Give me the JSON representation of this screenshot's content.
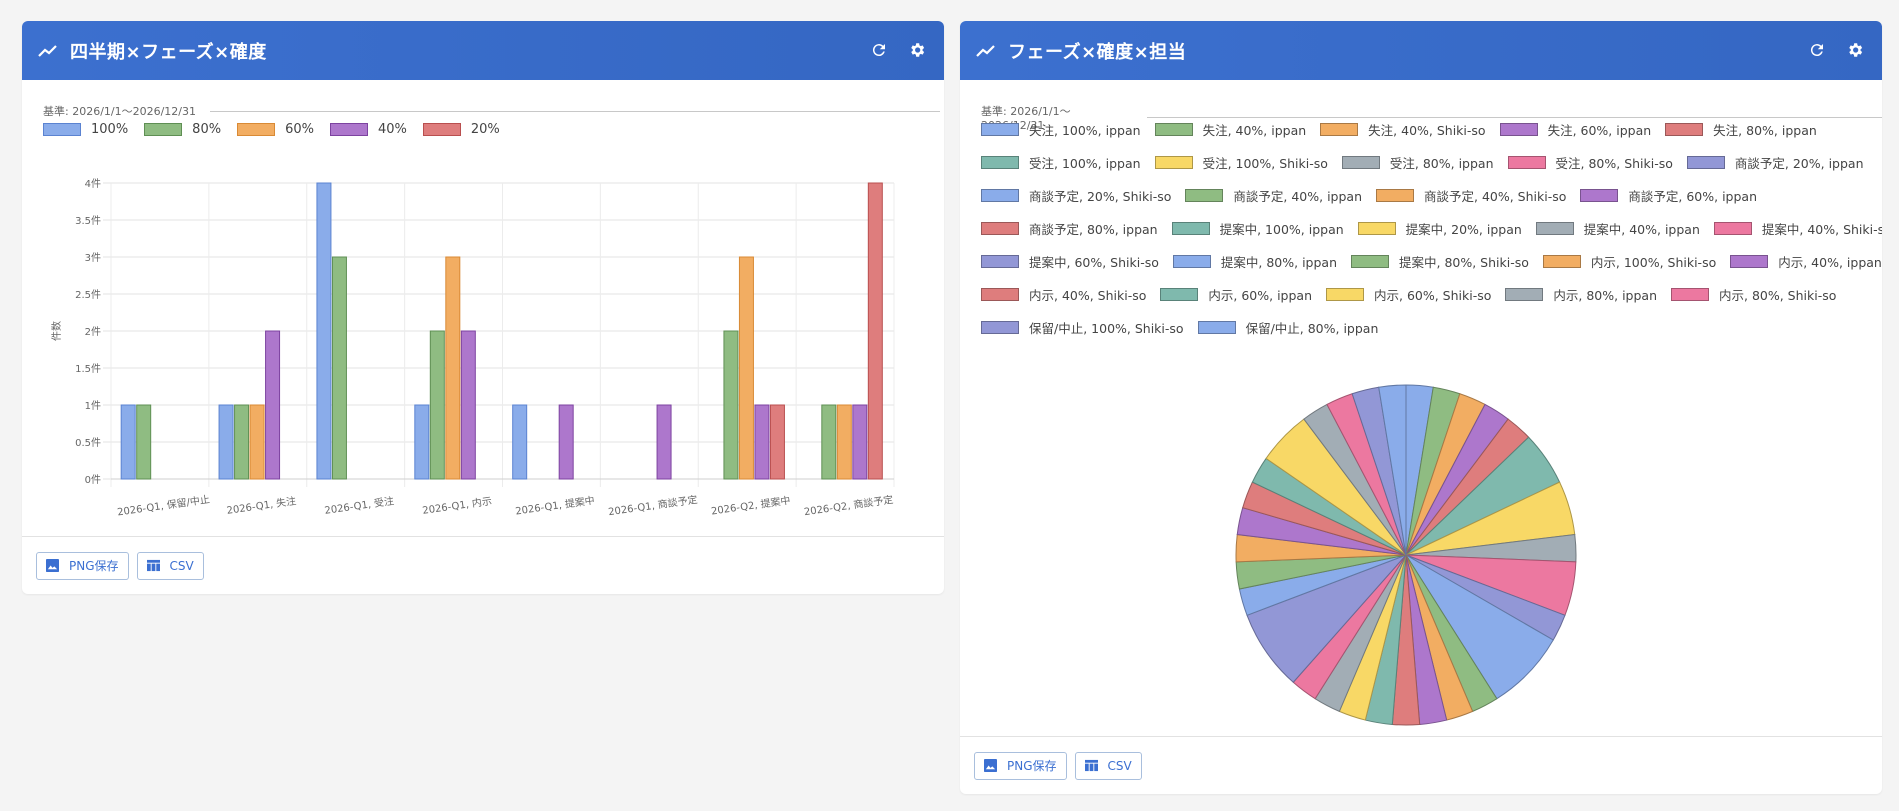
{
  "colors": {
    "header_bg": "#3a6dcc",
    "background": "#f4f4f4",
    "button_text": "#3b6fd1"
  },
  "left_panel": {
    "title": "四半期×フェーズ×確度",
    "period": "基準: 2026/1/1〜2026/12/31",
    "icons": [
      "trend-icon",
      "refresh-icon",
      "gear-icon"
    ],
    "buttons": {
      "png": "PNG保存",
      "csv": "CSV"
    }
  },
  "right_panel": {
    "title": "フェーズ×確度×担当",
    "period": "基準: 2026/1/1〜2026/12/31",
    "icons": [
      "trend-icon",
      "refresh-icon",
      "gear-icon"
    ],
    "buttons": {
      "png": "PNG保存",
      "csv": "CSV"
    }
  },
  "chart_data": [
    {
      "type": "bar",
      "title": "四半期×フェーズ×確度",
      "xlabel": "",
      "ylabel": "件数",
      "ylim": [
        0,
        4
      ],
      "yticks": [
        "0件",
        "0.5件",
        "1件",
        "1.5件",
        "2件",
        "2.5件",
        "3件",
        "3.5件",
        "4件"
      ],
      "grid": true,
      "legend_position": "top",
      "categories": [
        "2026-Q1, 保留/中止",
        "2026-Q1, 失注",
        "2026-Q1, 受注",
        "2026-Q1, 内示",
        "2026-Q1, 提案中",
        "2026-Q1, 商談予定",
        "2026-Q2, 提案中",
        "2026-Q2, 商談予定"
      ],
      "series": [
        {
          "name": "100%",
          "color": "#8aacea",
          "border": "#5b83d1",
          "values": [
            1,
            1,
            4,
            1,
            1,
            0,
            0,
            0
          ]
        },
        {
          "name": "80%",
          "color": "#8fbc82",
          "border": "#5f8f54",
          "values": [
            1,
            1,
            3,
            2,
            0,
            0,
            2,
            1
          ]
        },
        {
          "name": "60%",
          "color": "#f2ad62",
          "border": "#d98a35",
          "values": [
            0,
            1,
            0,
            3,
            0,
            0,
            3,
            1
          ]
        },
        {
          "name": "40%",
          "color": "#ad77cc",
          "border": "#7d43a0",
          "values": [
            0,
            2,
            0,
            2,
            1,
            1,
            1,
            1
          ]
        },
        {
          "name": "20%",
          "color": "#de7d7d",
          "border": "#b94f4f",
          "values": [
            0,
            0,
            0,
            0,
            0,
            0,
            1,
            4
          ]
        }
      ]
    },
    {
      "type": "pie",
      "title": "フェーズ×確度×担当",
      "legend_position": "top",
      "labels": [
        "失注, 100%, ippan",
        "失注, 40%, ippan",
        "失注, 40%, Shiki-so",
        "失注, 60%, ippan",
        "失注, 80%, ippan",
        "受注, 100%, ippan",
        "受注, 100%, Shiki-so",
        "受注, 80%, ippan",
        "受注, 80%, Shiki-so",
        "商談予定, 20%, ippan",
        "商談予定, 20%, Shiki-so",
        "商談予定, 40%, ippan",
        "商談予定, 40%, Shiki-so",
        "商談予定, 60%, ippan",
        "商談予定, 80%, ippan",
        "提案中, 100%, ippan",
        "提案中, 20%, ippan",
        "提案中, 40%, ippan",
        "提案中, 40%, Shiki-so",
        "提案中, 60%, Shiki-so",
        "提案中, 80%, ippan",
        "提案中, 80%, Shiki-so",
        "内示, 100%, Shiki-so",
        "内示, 40%, ippan",
        "内示, 40%, Shiki-so",
        "内示, 60%, ippan",
        "内示, 60%, Shiki-so",
        "内示, 80%, ippan",
        "内示, 80%, Shiki-so",
        "保留/中止, 100%, Shiki-so",
        "保留/中止, 80%, ippan"
      ],
      "values": [
        1,
        1,
        1,
        1,
        1,
        2,
        2,
        1,
        2,
        1,
        3,
        1,
        1,
        1,
        1,
        1,
        1,
        1,
        1,
        3,
        1,
        1,
        1,
        1,
        1,
        1,
        2,
        1,
        1,
        1,
        1
      ],
      "colors": [
        "#8aacea",
        "#8fbc82",
        "#f2ad62",
        "#ad77cc",
        "#de7d7d",
        "#7fb9ad",
        "#f8d866",
        "#a2adb5",
        "#ec78a0",
        "#9297d6"
      ]
    }
  ]
}
